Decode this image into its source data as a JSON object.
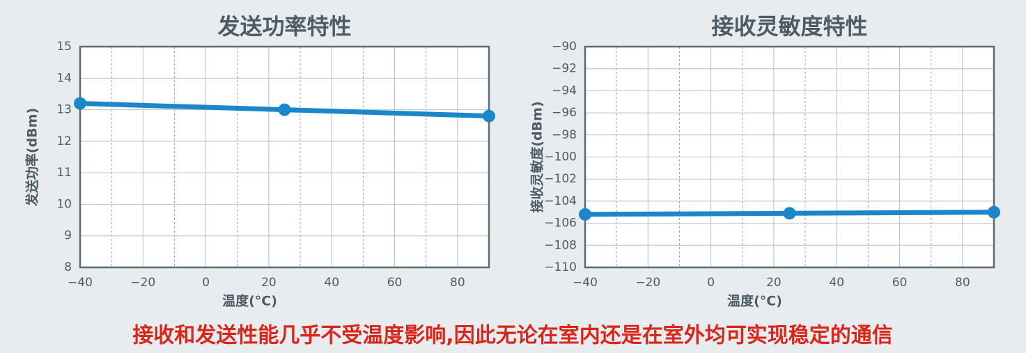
{
  "chart_data": [
    {
      "type": "line",
      "title": "发送功率特性",
      "x_label": "温度(°C)",
      "y_label": "发送功率(dBm)",
      "x": [
        -40,
        25,
        90
      ],
      "series": [
        {
          "name": "发送功率",
          "color": "#1b87c9",
          "values": [
            13.2,
            13.0,
            12.8
          ]
        }
      ],
      "xlim": [
        -40,
        90
      ],
      "xticks": [
        {
          "value": -40,
          "label": "−40"
        },
        {
          "value": -20,
          "label": "−20"
        },
        0,
        20,
        40,
        60,
        80
      ],
      "xminorticks": [
        -30,
        -10,
        10,
        30,
        50,
        70,
        90
      ],
      "ylim": [
        8,
        15
      ],
      "yticks": [
        8,
        9,
        10,
        11,
        12,
        13,
        14,
        15
      ],
      "grid": true
    },
    {
      "type": "line",
      "title": "接收灵敏度特性",
      "x_label": "温度(°C)",
      "y_label": "接收灵敏度(dBm)",
      "x": [
        -40,
        25,
        90
      ],
      "series": [
        {
          "name": "接收灵敏度",
          "color": "#1b87c9",
          "values": [
            -105.2,
            -105.1,
            -105.0
          ]
        }
      ],
      "xlim": [
        -40,
        90
      ],
      "xticks": [
        {
          "value": -40,
          "label": "−40"
        },
        {
          "value": -20,
          "label": "−20"
        },
        0,
        20,
        40,
        60,
        80
      ],
      "xminorticks": [
        -30,
        -10,
        10,
        30,
        50,
        70,
        90
      ],
      "ylim": [
        -110,
        -90
      ],
      "yticks": [
        {
          "value": -110,
          "label": "−110"
        },
        {
          "value": -108,
          "label": "−108"
        },
        {
          "value": -106,
          "label": "−106"
        },
        {
          "value": -104,
          "label": "−104"
        },
        {
          "value": -102,
          "label": "−102"
        },
        {
          "value": -100,
          "label": "−100"
        },
        {
          "value": -98,
          "label": "−98"
        },
        {
          "value": -96,
          "label": "−96"
        },
        {
          "value": -94,
          "label": "−94"
        },
        {
          "value": -92,
          "label": "−92"
        },
        {
          "value": -90,
          "label": "−90"
        }
      ],
      "grid": true
    }
  ],
  "caption": "接收和发送性能几乎不受温度影响,因此无论在室内还是在室外均可实现稳定的通信"
}
